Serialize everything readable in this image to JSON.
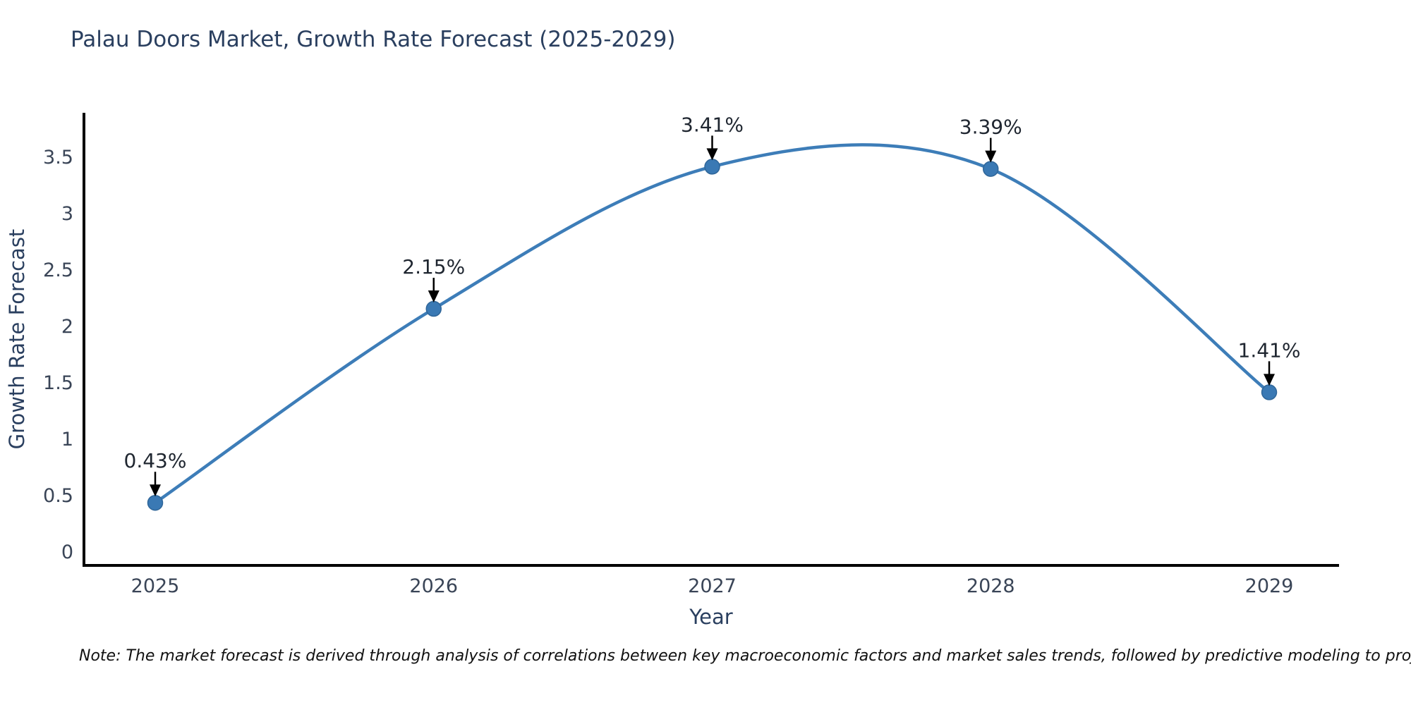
{
  "title": "Palau Doors Market, Growth Rate Forecast (2025-2029)",
  "note": "Note: The market forecast is derived through analysis of correlations between key macroeconomic factors and market sales trends, followed by predictive modeling to project future sales",
  "chart_data": {
    "type": "line",
    "title": "Palau Doors Market, Growth Rate Forecast (2025-2029)",
    "x": [
      2025,
      2026,
      2027,
      2028,
      2029
    ],
    "values": [
      0.43,
      2.15,
      3.41,
      3.39,
      1.41
    ],
    "point_labels": [
      "0.43%",
      "2.15%",
      "3.41%",
      "3.39%",
      "1.41%"
    ],
    "xlabel": "Year",
    "ylabel": "Growth Rate Forecast",
    "xtick_labels": [
      "2025",
      "2026",
      "2027",
      "2028",
      "2029"
    ],
    "yticks": [
      0,
      0.5,
      1,
      1.5,
      2,
      2.5,
      3,
      3.5
    ],
    "ytick_labels": [
      "0",
      "0.5",
      "1",
      "1.5",
      "2",
      "2.5",
      "3",
      "3.5"
    ],
    "ylim": [
      -0.1,
      3.9
    ],
    "line_shape": "spline",
    "grid": false,
    "legend_position": "none",
    "colors": {
      "line": "#3d7db8",
      "marker": "#3a79b4",
      "marker_edge": "#2f6699",
      "axis": "#000000",
      "title_text": "#2a3f5f",
      "tick_text": "#3a4557",
      "annotation_text": "#1f2630",
      "annotation_arrow": "#000000",
      "background": "#ffffff"
    }
  }
}
